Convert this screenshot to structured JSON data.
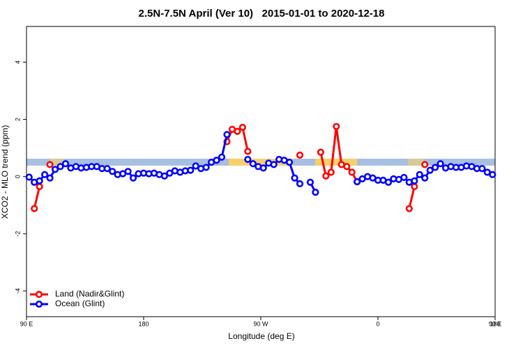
{
  "chart_data": {
    "type": "line",
    "title": "2.5N-7.5N April (Ver 10)   2015-01-01 to 2020-12-18",
    "x_label": "Longitude (deg E)",
    "y_label": "XCO2 - MLO trend (ppm)",
    "xlim": [
      90,
      450
    ],
    "ylim": [
      -4.9,
      5.25
    ],
    "xticks": [
      {
        "value": 90,
        "label": "90 E"
      },
      180,
      {
        "value": 270,
        "label": "90 W"
      },
      {
        "value": 360,
        "label": "0"
      },
      {
        "value": 450,
        "label": "90 E"
      },
      {
        "value": 540,
        "label": "180"
      }
    ],
    "yticks": [
      -4,
      -2,
      0,
      2,
      4
    ],
    "legend": "bottom left",
    "x": [
      92,
      96,
      100,
      104,
      108,
      112,
      116,
      120,
      124,
      128,
      132,
      136,
      140,
      144,
      148,
      152,
      156,
      160,
      164,
      168,
      172,
      176,
      180,
      184,
      188,
      192,
      196,
      200,
      204,
      208,
      212,
      216,
      220,
      224,
      228,
      232,
      236,
      240,
      244,
      248,
      252,
      256,
      260,
      264,
      268,
      272,
      276,
      280,
      284,
      288,
      292,
      296,
      300,
      304,
      308,
      312,
      316,
      320,
      324,
      328,
      332,
      336,
      340,
      344,
      348,
      352,
      356,
      360,
      364,
      368,
      372,
      376,
      380,
      384,
      388,
      392,
      396,
      400,
      404,
      408,
      412,
      416,
      420,
      424,
      428,
      432,
      436,
      440,
      444,
      448
    ],
    "series": [
      {
        "name": "Land (Nadir&Glint)",
        "color": "#ff0000",
        "values": [
          null,
          -1.12,
          -0.35,
          null,
          0.42,
          null,
          null,
          null,
          null,
          null,
          null,
          null,
          null,
          null,
          null,
          null,
          null,
          null,
          null,
          null,
          null,
          null,
          null,
          null,
          null,
          null,
          null,
          null,
          null,
          null,
          null,
          null,
          null,
          null,
          null,
          null,
          null,
          null,
          1.22,
          1.65,
          1.58,
          1.72,
          0.88,
          null,
          null,
          null,
          null,
          null,
          null,
          null,
          null,
          null,
          0.75,
          null,
          null,
          null,
          0.85,
          0.02,
          0.15,
          1.75,
          0.42,
          0.35,
          0.15,
          -0.18,
          null,
          null,
          null,
          null,
          null,
          null,
          null,
          null,
          null,
          -1.12,
          -0.35,
          null,
          0.42,
          null,
          null,
          null,
          null,
          null,
          null,
          null,
          null,
          null,
          null,
          null,
          null,
          null
        ]
      },
      {
        "name": "Ocean (Glint)",
        "color": "#0000ff",
        "values": [
          -0.02,
          -0.2,
          -0.15,
          0.07,
          -0.05,
          0.25,
          0.35,
          0.45,
          0.3,
          0.35,
          0.3,
          0.32,
          0.35,
          0.35,
          0.28,
          0.28,
          0.18,
          0.07,
          0.1,
          0.18,
          -0.05,
          0.1,
          0.12,
          0.1,
          0.12,
          0.07,
          0.02,
          0.12,
          0.2,
          0.15,
          0.2,
          0.22,
          0.37,
          0.28,
          0.32,
          0.5,
          0.57,
          0.68,
          1.47,
          null,
          null,
          null,
          0.6,
          0.45,
          0.35,
          0.3,
          0.47,
          0.42,
          0.6,
          0.57,
          0.5,
          -0.05,
          -0.25,
          null,
          -0.2,
          -0.55,
          null,
          null,
          null,
          null,
          null,
          null,
          null,
          -0.18,
          -0.08,
          0,
          -0.05,
          -0.13,
          -0.13,
          -0.2,
          -0.08,
          -0.1,
          -0.03,
          -0.2,
          -0.15,
          0.07,
          -0.05,
          0.22,
          0.32,
          0.45,
          0.3,
          0.35,
          0.32,
          0.32,
          0.37,
          0.35,
          0.28,
          0.28,
          0.15,
          0.07
        ]
      }
    ]
  }
}
